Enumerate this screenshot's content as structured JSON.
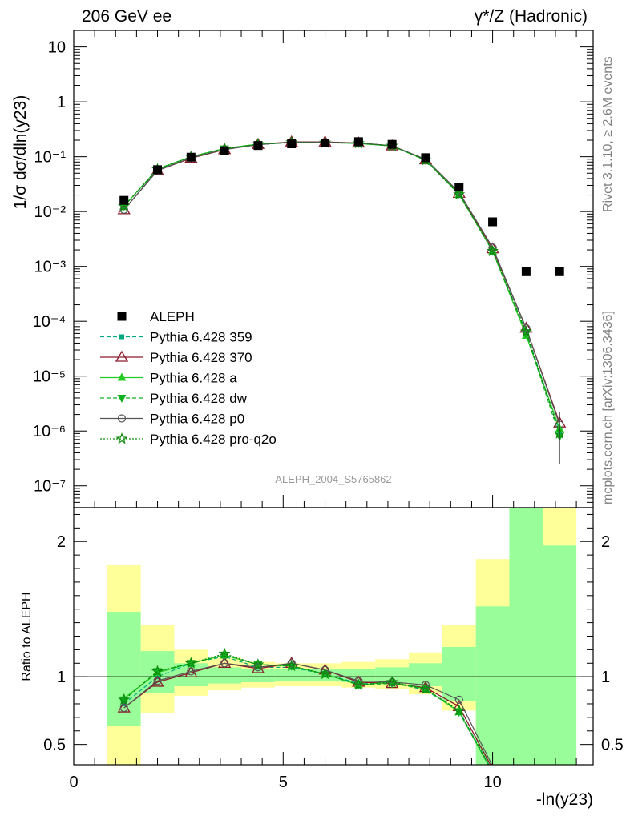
{
  "header": {
    "left": "206 GeV ee",
    "right": "γ*/Z (Hadronic)"
  },
  "side_labels": {
    "rivet": "Rivet 3.1.10, ≥ 2.6M events",
    "mcplots": "mcplots.cern.ch [arXiv:1306.3436]"
  },
  "analysis_id": "ALEPH_2004_S5765862",
  "colors": {
    "data": "#000000",
    "p359": "#00a880",
    "p370": "#8b1a2a",
    "a": "#22cc22",
    "dw": "#10b020",
    "p0": "#555555",
    "proq2o": "#0a8a0a",
    "band_inner": "#99fe99",
    "band_outer": "#ffff99"
  },
  "chart_data": [
    {
      "type": "line",
      "panel": "main",
      "ylabel": "1/σ dσ/dln(y23)",
      "yscale": "log",
      "ylim": [
        4e-08,
        20
      ],
      "xlim": [
        0,
        12.4
      ],
      "y_tick_labels": [
        "10⁻⁷",
        "10⁻⁶",
        "10⁻⁵",
        "10⁻⁴",
        "10⁻³",
        "10⁻²",
        "10⁻¹",
        "1",
        "10"
      ],
      "x": [
        1.2,
        2.0,
        2.8,
        3.6,
        4.4,
        5.2,
        6.0,
        6.8,
        7.6,
        8.4,
        9.2,
        10.0,
        10.8,
        11.6
      ],
      "data": {
        "name": "ALEPH",
        "values": [
          0.016,
          0.058,
          0.098,
          0.128,
          0.16,
          0.172,
          0.178,
          0.188,
          0.168,
          0.096,
          0.028,
          0.0065,
          0.0008,
          0.0008
        ]
      },
      "series": [
        {
          "name": "Pythia 6.428 359",
          "key": "p359",
          "values": [
            0.0125,
            0.057,
            0.1,
            0.14,
            0.168,
            0.18,
            0.182,
            0.178,
            0.156,
            0.088,
            0.021,
            0.0019,
            6.5e-05,
            1e-06
          ]
        },
        {
          "name": "Pythia 6.428 370",
          "key": "p370",
          "values": [
            0.0108,
            0.056,
            0.094,
            0.135,
            0.168,
            0.186,
            0.186,
            0.178,
            0.158,
            0.088,
            0.0215,
            0.0021,
            7.5e-05,
            1.4e-06
          ]
        },
        {
          "name": "Pythia 6.428 a",
          "key": "a",
          "values": [
            0.0125,
            0.06,
            0.1,
            0.142,
            0.17,
            0.182,
            0.182,
            0.174,
            0.156,
            0.087,
            0.0205,
            0.0019,
            5.5e-05,
            1.1e-06
          ]
        },
        {
          "name": "Pythia 6.428 dw",
          "key": "dw",
          "values": [
            0.0125,
            0.06,
            0.1,
            0.14,
            0.168,
            0.182,
            0.18,
            0.176,
            0.158,
            0.086,
            0.021,
            0.0019,
            6e-05,
            8e-07
          ]
        },
        {
          "name": "Pythia 6.428 p0",
          "key": "p0",
          "values": [
            0.0108,
            0.056,
            0.096,
            0.135,
            0.166,
            0.184,
            0.184,
            0.178,
            0.158,
            0.09,
            0.0225,
            0.0022,
            7.5e-05,
            1.3e-06
          ]
        },
        {
          "name": "Pythia 6.428 pro-q2o",
          "key": "proq2o",
          "values": [
            0.0125,
            0.059,
            0.1,
            0.14,
            0.168,
            0.182,
            0.18,
            0.176,
            0.158,
            0.086,
            0.0205,
            0.0019,
            6.5e-05,
            9e-07
          ]
        }
      ],
      "legend": "lower-left"
    },
    {
      "type": "line",
      "panel": "ratio",
      "ylabel": "Ratio to ALEPH",
      "xlabel": "-ln(y23)",
      "ylim": [
        0.35,
        2.25
      ],
      "xlim": [
        0,
        12.4
      ],
      "y_tick_labels": [
        "0.5",
        "1",
        "2"
      ],
      "x_tick_labels": [
        "0",
        "5",
        "10"
      ],
      "bins": {
        "edges": [
          0.8,
          1.6,
          2.4,
          3.2,
          4.0,
          4.8,
          5.6,
          6.4,
          7.2,
          8.0,
          8.8,
          9.6,
          10.4,
          11.2,
          12.0
        ],
        "inner": [
          [
            0.64,
            1.48
          ],
          [
            0.88,
            1.19
          ],
          [
            0.93,
            1.1
          ],
          [
            0.95,
            1.07
          ],
          [
            0.96,
            1.06
          ],
          [
            0.965,
            1.055
          ],
          [
            0.965,
            1.055
          ],
          [
            0.96,
            1.06
          ],
          [
            0.955,
            1.07
          ],
          [
            0.93,
            1.1
          ],
          [
            0.82,
            1.22
          ],
          [
            0.35,
            1.52
          ],
          [
            0.35,
            2.25
          ],
          [
            0.35,
            1.97
          ]
        ],
        "outer": [
          [
            0.35,
            1.83
          ],
          [
            0.73,
            1.38
          ],
          [
            0.86,
            1.2
          ],
          [
            0.9,
            1.14
          ],
          [
            0.92,
            1.11
          ],
          [
            0.93,
            1.1
          ],
          [
            0.93,
            1.1
          ],
          [
            0.92,
            1.11
          ],
          [
            0.91,
            1.13
          ],
          [
            0.87,
            1.18
          ],
          [
            0.75,
            1.38
          ],
          [
            0.6,
            1.87
          ],
          [
            0.35,
            2.25
          ],
          [
            0.35,
            2.25
          ]
        ]
      },
      "series": [
        {
          "key": "p359",
          "values": [
            0.8,
            1.0,
            1.1,
            1.15,
            1.07,
            1.07,
            1.02,
            0.95,
            0.96,
            0.9,
            0.75,
            0.3
          ]
        },
        {
          "key": "p370",
          "values": [
            0.77,
            0.96,
            1.03,
            1.1,
            1.06,
            1.1,
            1.05,
            0.96,
            0.95,
            0.92,
            0.78,
            0.32
          ]
        },
        {
          "key": "a",
          "values": [
            0.84,
            1.03,
            1.1,
            1.16,
            1.09,
            1.08,
            1.02,
            0.94,
            0.96,
            0.91,
            0.74,
            0.29
          ]
        },
        {
          "key": "dw",
          "values": [
            0.83,
            1.04,
            1.1,
            1.16,
            1.09,
            1.08,
            1.02,
            0.94,
            0.95,
            0.91,
            0.74,
            0.29
          ]
        },
        {
          "key": "p0",
          "values": [
            0.77,
            0.97,
            1.04,
            1.1,
            1.07,
            1.1,
            1.05,
            0.97,
            0.96,
            0.94,
            0.83,
            0.34
          ]
        },
        {
          "key": "proq2o",
          "values": [
            0.83,
            1.04,
            1.1,
            1.17,
            1.09,
            1.08,
            1.02,
            0.94,
            0.96,
            0.91,
            0.75,
            0.3
          ]
        }
      ]
    }
  ]
}
